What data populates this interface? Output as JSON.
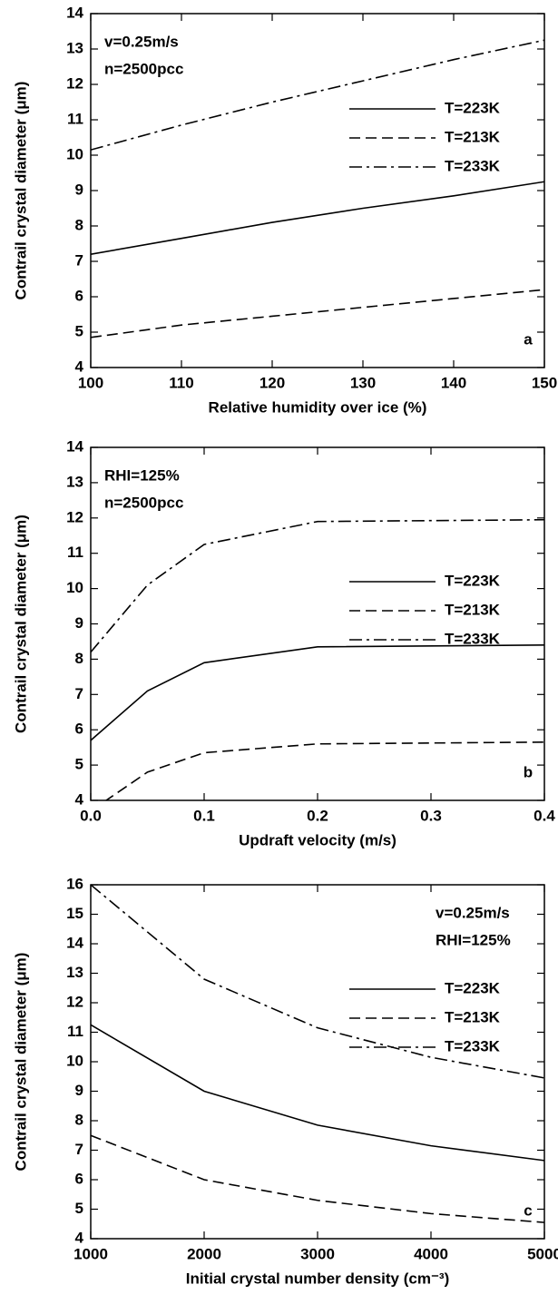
{
  "chart_data": [
    {
      "type": "line",
      "xlabel": "Relative humidity over ice (%)",
      "ylabel": "Contrail crystal diameter (μm)",
      "annotations": [
        "v=0.25m/s",
        "n=2500pcc"
      ],
      "panel_label": "a",
      "x": [
        100,
        110,
        120,
        130,
        140,
        150
      ],
      "series": [
        {
          "name": "T=223K",
          "color": "#000000",
          "dash": "solid",
          "values": [
            7.2,
            7.65,
            8.1,
            8.5,
            8.85,
            9.25
          ]
        },
        {
          "name": "T=213K",
          "color": "#000000",
          "dash": "dashed",
          "values": [
            4.85,
            5.2,
            5.45,
            5.7,
            5.95,
            6.2
          ]
        },
        {
          "name": "T=233K",
          "color": "#000000",
          "dash": "dashdot",
          "values": [
            10.15,
            10.85,
            11.5,
            12.1,
            12.7,
            13.25
          ]
        }
      ],
      "xlim": [
        100,
        150
      ],
      "xticks": [
        100,
        110,
        120,
        130,
        140,
        150
      ],
      "ylim": [
        4,
        14
      ],
      "yticks": [
        4,
        5,
        6,
        7,
        8,
        9,
        10,
        11,
        12,
        13,
        14
      ]
    },
    {
      "type": "line",
      "xlabel": "Updraft velocity (m/s)",
      "ylabel": "Contrail crystal diameter (μm)",
      "annotations": [
        "RHI=125%",
        "n=2500pcc"
      ],
      "panel_label": "b",
      "x": [
        0,
        0.05,
        0.1,
        0.2,
        0.4
      ],
      "series": [
        {
          "name": "T=223K",
          "color": "#000000",
          "dash": "solid",
          "values": [
            5.7,
            7.1,
            7.9,
            8.35,
            8.4
          ]
        },
        {
          "name": "T=213K",
          "color": "#000000",
          "dash": "dashed",
          "values": [
            3.7,
            4.8,
            5.35,
            5.6,
            5.65
          ]
        },
        {
          "name": "T=233K",
          "color": "#000000",
          "dash": "dashdot",
          "values": [
            8.2,
            10.1,
            11.25,
            11.9,
            11.95
          ]
        }
      ],
      "xlim": [
        0,
        0.4
      ],
      "xticks": [
        {
          "value": 0,
          "label": "0.0"
        },
        0.1,
        0.2,
        0.3,
        0.4
      ],
      "ylim": [
        4,
        14
      ],
      "yticks": [
        4,
        5,
        6,
        7,
        8,
        9,
        10,
        11,
        12,
        13,
        14
      ]
    },
    {
      "type": "line",
      "xlabel": "Initial crystal number density (cm⁻³)",
      "ylabel": "Contrail crystal diameter (μm)",
      "annotations": [
        "v=0.25m/s",
        "RHI=125%"
      ],
      "panel_label": "c",
      "x": [
        1000,
        2000,
        3000,
        4000,
        5000
      ],
      "series": [
        {
          "name": "T=223K",
          "color": "#000000",
          "dash": "solid",
          "values": [
            11.25,
            9.0,
            7.85,
            7.15,
            6.65
          ]
        },
        {
          "name": "T=213K",
          "color": "#000000",
          "dash": "dashed",
          "values": [
            7.5,
            6.0,
            5.3,
            4.85,
            4.55
          ]
        },
        {
          "name": "T=233K",
          "color": "#000000",
          "dash": "dashdot",
          "values": [
            16.0,
            12.8,
            11.15,
            10.15,
            9.45
          ]
        }
      ],
      "xlim": [
        1000,
        5000
      ],
      "xticks": [
        1000,
        2000,
        3000,
        4000,
        5000
      ],
      "ylim": [
        4,
        16
      ],
      "yticks": [
        4,
        5,
        6,
        7,
        8,
        9,
        10,
        11,
        12,
        13,
        14,
        15,
        16
      ]
    }
  ]
}
